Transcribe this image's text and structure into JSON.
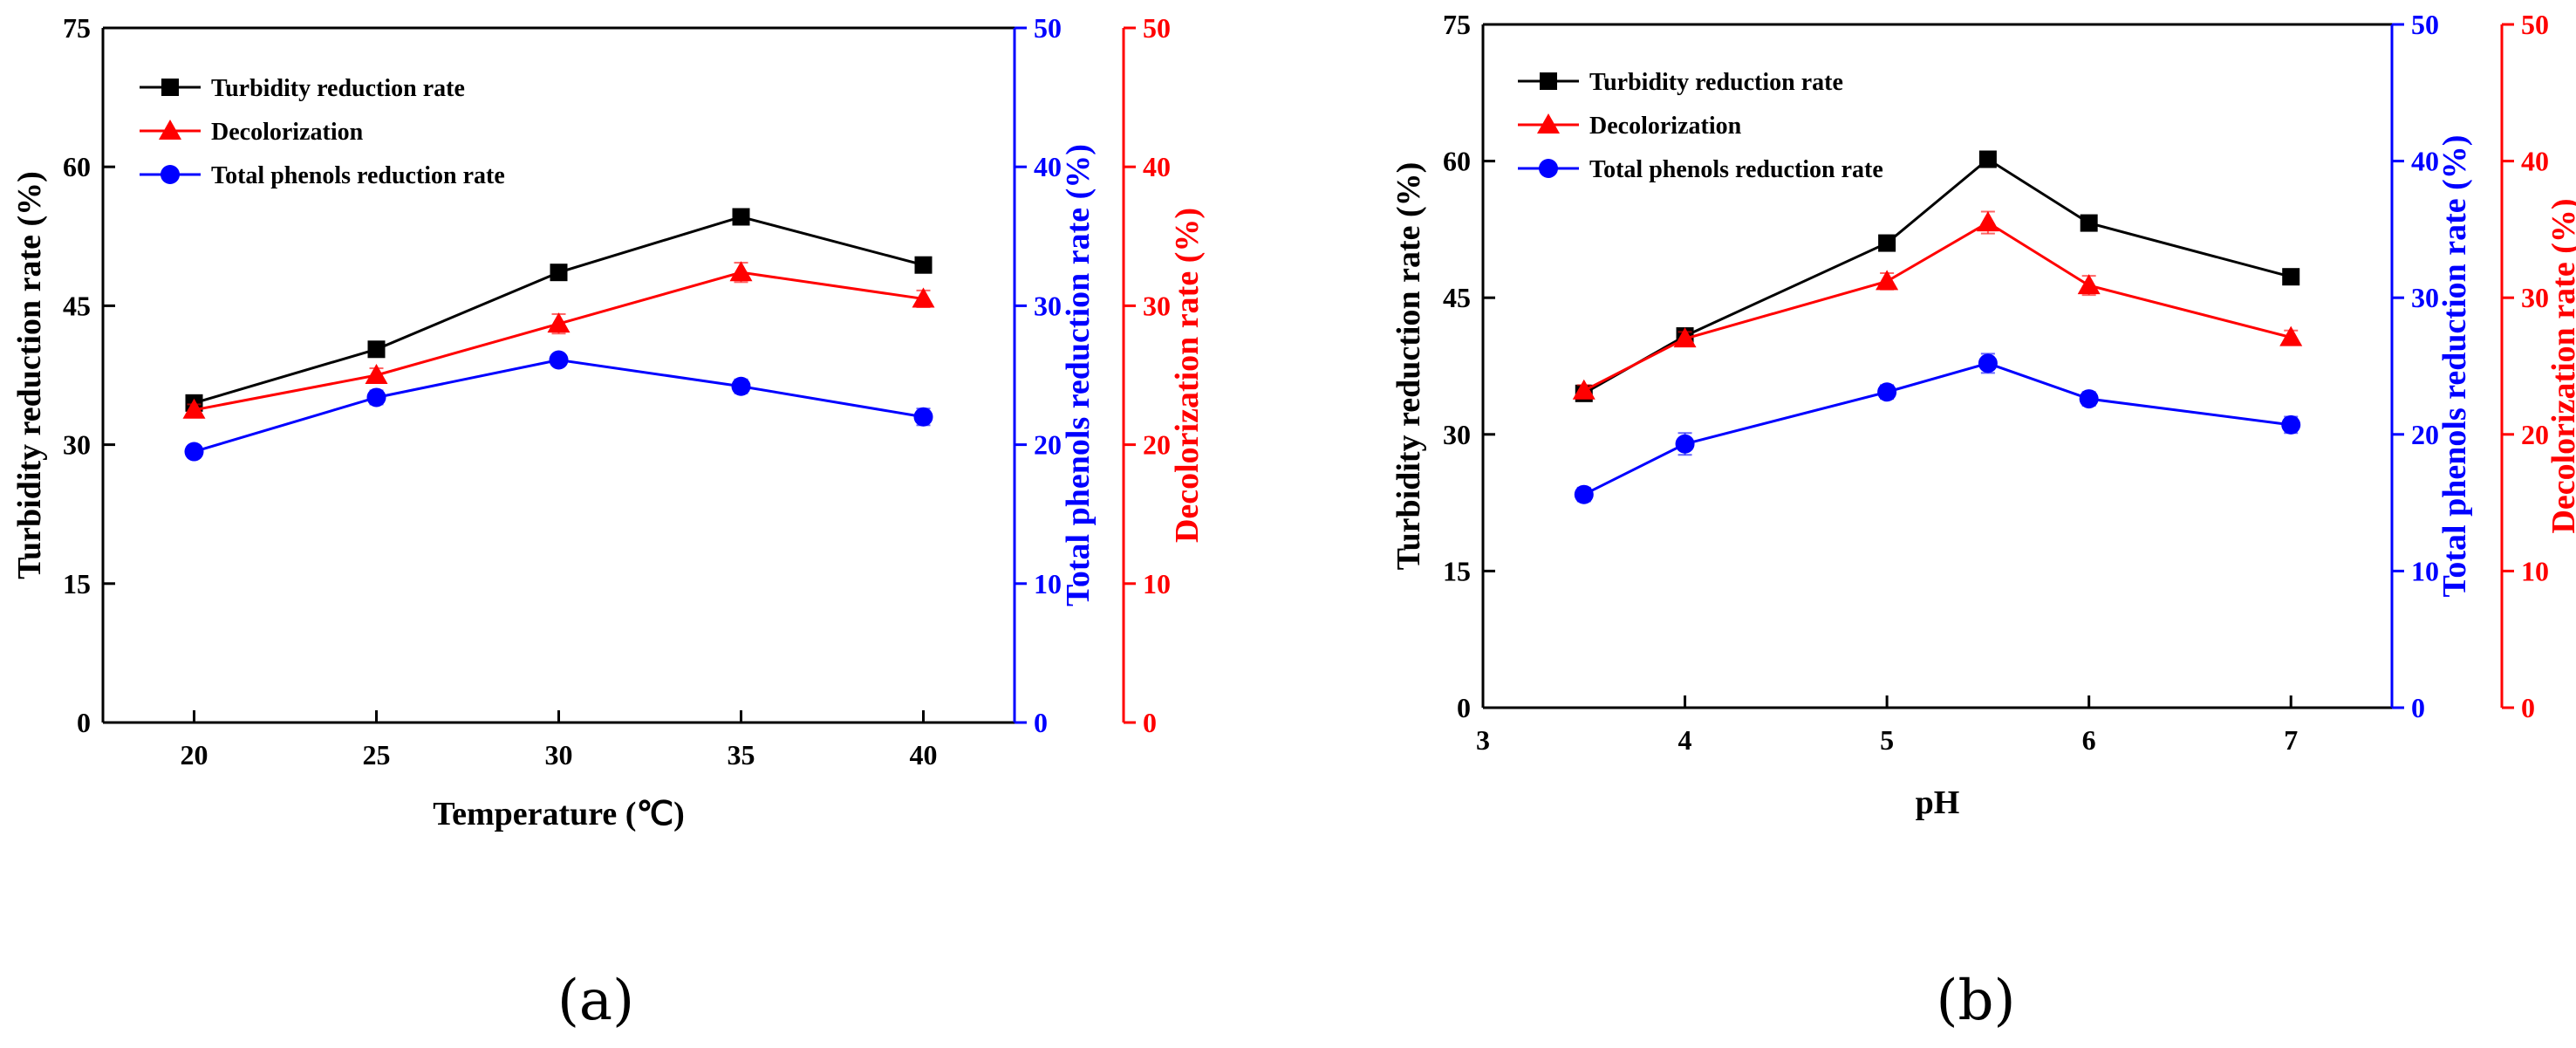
{
  "chart_data": [
    {
      "type": "line",
      "panel_label": "(a)",
      "xlabel": "Temperature (℃)",
      "x": [
        20,
        25,
        30,
        35,
        40
      ],
      "xlim": [
        17.5,
        42.5
      ],
      "xticks": [
        20,
        25,
        30,
        35,
        40
      ],
      "legend_position": "top-left",
      "axes": {
        "left": {
          "label": "Turbidity reduction rate (%)",
          "ylim": [
            0,
            75
          ],
          "ticks": [
            0,
            15,
            30,
            45,
            60,
            75
          ],
          "color": "#000000"
        },
        "right1": {
          "label": "Total phenols reduction rate (%)",
          "ylim": [
            0,
            50
          ],
          "ticks": [
            0,
            10,
            20,
            30,
            40,
            50
          ],
          "color": "#0000ff"
        },
        "right2": {
          "label": "Decolorization rate (%)",
          "ylim": [
            0,
            50
          ],
          "ticks": [
            0,
            10,
            20,
            30,
            40,
            50
          ],
          "color": "#ff0000"
        }
      },
      "series": [
        {
          "name": "Turbidity reduction rate",
          "axis": "left",
          "marker": "square",
          "color": "#000000",
          "values": [
            34.5,
            40.3,
            48.6,
            54.6,
            49.4
          ],
          "errors": [
            0.5,
            0.5,
            0.6,
            0.5,
            0.5
          ]
        },
        {
          "name": "Decolorization",
          "axis": "right2",
          "marker": "triangle",
          "color": "#ff0000",
          "values": [
            22.5,
            25.0,
            28.7,
            32.4,
            30.5
          ],
          "errors": [
            0.4,
            0.5,
            0.7,
            0.7,
            0.6
          ]
        },
        {
          "name": "Total phenols reduction rate",
          "axis": "right1",
          "marker": "circle",
          "color": "#0000ff",
          "values": [
            19.5,
            23.4,
            26.1,
            24.2,
            22.0
          ],
          "errors": [
            0.4,
            0.5,
            0.4,
            0.5,
            0.6
          ]
        }
      ]
    },
    {
      "type": "line",
      "panel_label": "(b)",
      "xlabel": "pH",
      "x": [
        3.5,
        4,
        5,
        5.5,
        6,
        7
      ],
      "xlim": [
        3,
        7.5
      ],
      "xticks": [
        3,
        4,
        5,
        6,
        7
      ],
      "legend_position": "top-left",
      "axes": {
        "left": {
          "label": "Turbidity reduction rate (%)",
          "ylim": [
            0,
            75
          ],
          "ticks": [
            0,
            15,
            30,
            45,
            60,
            75
          ],
          "color": "#000000"
        },
        "right1": {
          "label": "Total phenols reduction rate (%)",
          "ylim": [
            0,
            50
          ],
          "ticks": [
            0,
            10,
            20,
            30,
            40,
            50
          ],
          "color": "#0000ff"
        },
        "right2": {
          "label": "Decolorization rate (%)",
          "ylim": [
            0,
            50
          ],
          "ticks": [
            0,
            10,
            20,
            30,
            40,
            50
          ],
          "color": "#ff0000"
        }
      },
      "series": [
        {
          "name": "Turbidity reduction rate",
          "axis": "left",
          "marker": "square",
          "color": "#000000",
          "values": [
            34.5,
            40.8,
            51.0,
            60.2,
            53.2,
            47.3
          ],
          "errors": [
            0.5,
            0.5,
            0.5,
            0.7,
            0.5,
            0.5
          ]
        },
        {
          "name": "Decolorization",
          "axis": "right2",
          "marker": "triangle",
          "color": "#ff0000",
          "values": [
            23.2,
            27.0,
            31.2,
            35.5,
            30.9,
            27.1
          ],
          "errors": [
            0.4,
            0.5,
            0.6,
            0.8,
            0.7,
            0.5
          ]
        },
        {
          "name": "Total phenols reduction rate",
          "axis": "right1",
          "marker": "circle",
          "color": "#0000ff",
          "values": [
            15.6,
            19.3,
            23.1,
            25.2,
            22.6,
            20.7
          ],
          "errors": [
            0.5,
            0.8,
            0.5,
            0.7,
            0.5,
            0.6
          ]
        }
      ]
    }
  ]
}
